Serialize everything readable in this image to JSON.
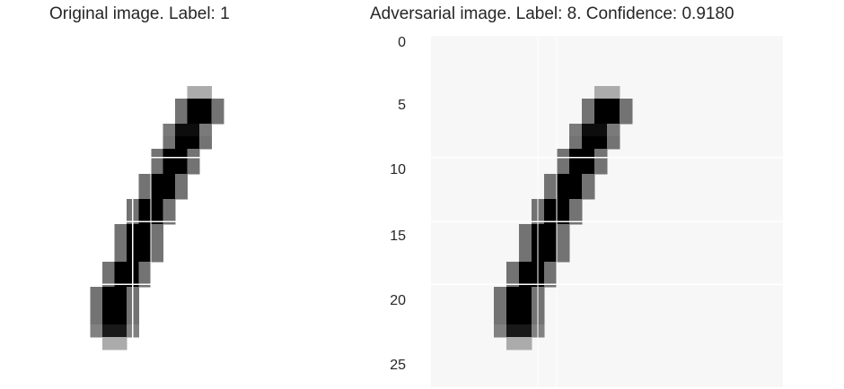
{
  "titles": {
    "original": "Original image. Label: 1",
    "adversarial": "Adversarial image. Label: 8. Confidence: 0.9180"
  },
  "y_ticks": [
    "0",
    "5",
    "10",
    "15",
    "20",
    "25"
  ],
  "colors": {
    "ink": "#000000",
    "paper": "#ffffff",
    "adv_noise_bg": "#f7f7f7"
  },
  "images": {
    "size": 28,
    "digit_rows": [
      [
        4,
        13,
        14,
        0.6
      ],
      [
        5,
        12,
        15,
        1.0
      ],
      [
        6,
        12,
        15,
        1.0
      ],
      [
        7,
        11,
        14,
        0.95
      ],
      [
        8,
        11,
        14,
        1.0
      ],
      [
        9,
        10,
        13,
        1.0
      ],
      [
        10,
        10,
        13,
        1.0
      ],
      [
        11,
        9,
        12,
        1.0
      ],
      [
        12,
        9,
        12,
        1.0
      ],
      [
        13,
        8,
        11,
        1.0
      ],
      [
        14,
        8,
        11,
        1.0
      ],
      [
        15,
        7,
        10,
        1.0
      ],
      [
        16,
        7,
        10,
        1.0
      ],
      [
        17,
        7,
        10,
        1.0
      ],
      [
        18,
        6,
        9,
        1.0
      ],
      [
        19,
        6,
        9,
        1.0
      ],
      [
        20,
        5,
        8,
        1.0
      ],
      [
        21,
        5,
        8,
        1.0
      ],
      [
        22,
        5,
        8,
        1.0
      ],
      [
        23,
        5,
        8,
        0.9
      ],
      [
        24,
        6,
        7,
        0.6
      ]
    ]
  }
}
